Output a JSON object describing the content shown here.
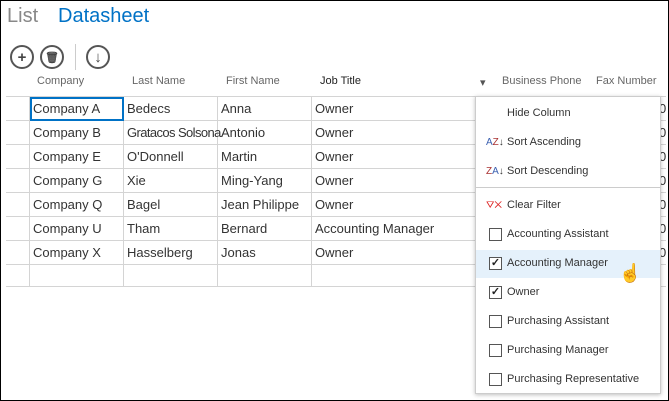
{
  "tabs": {
    "list": "List",
    "datasheet": "Datasheet"
  },
  "toolbar": {
    "add": "add-icon",
    "delete": "trash-icon",
    "download": "download-icon"
  },
  "columns": [
    "Company",
    "Last Name",
    "First Name",
    "Job Title",
    "Business Phone",
    "Fax Number"
  ],
  "rows": [
    [
      "Company A",
      "Bedecs",
      "Anna",
      "Owner"
    ],
    [
      "Company B",
      "Gratacos Solsona",
      "Antonio",
      "Owner"
    ],
    [
      "Company E",
      "O'Donnell",
      "Martin",
      "Owner"
    ],
    [
      "Company G",
      "Xie",
      "Ming-Yang",
      "Owner"
    ],
    [
      "Company Q",
      "Bagel",
      "Jean Philippe",
      "Owner"
    ],
    [
      "Company U",
      "Tham",
      "Bernard",
      "Accounting Manager"
    ],
    [
      "Company X",
      "Hasselberg",
      "Jonas",
      "Owner"
    ]
  ],
  "menu": {
    "hide": "Hide Column",
    "sort_asc": "Sort Ascending",
    "sort_desc": "Sort Descending",
    "clear": "Clear Filter",
    "filters": [
      {
        "label": "Accounting Assistant",
        "checked": false
      },
      {
        "label": "Accounting Manager",
        "checked": true
      },
      {
        "label": "Owner",
        "checked": true
      },
      {
        "label": "Purchasing Assistant",
        "checked": false
      },
      {
        "label": "Purchasing Manager",
        "checked": false
      },
      {
        "label": "Purchasing Representative",
        "checked": false
      }
    ]
  },
  "colors": {
    "accent": "#0072c6",
    "hover": "#e5f1fb"
  }
}
